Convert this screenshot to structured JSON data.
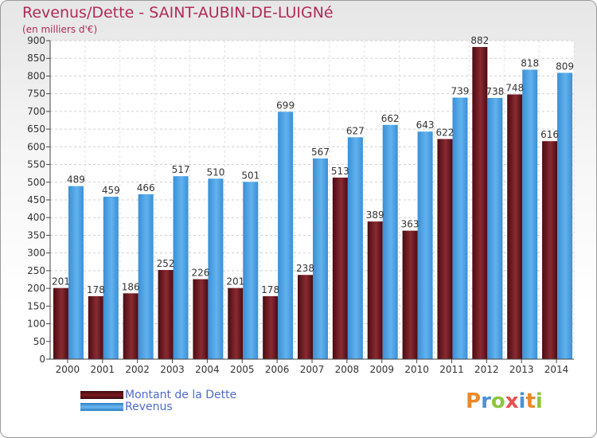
{
  "chart_data": {
    "type": "bar",
    "title": "Revenus/Dette - SAINT-AUBIN-DE-LUIGNé",
    "subtitle": "(en milliers d'€)",
    "categories": [
      "2000",
      "2001",
      "2002",
      "2003",
      "2004",
      "2005",
      "2006",
      "2007",
      "2008",
      "2009",
      "2010",
      "2011",
      "2012",
      "2013",
      "2014"
    ],
    "series": [
      {
        "name": "Montant de la Dette",
        "color": "#7a1a20",
        "values": [
          201,
          178,
          186,
          252,
          226,
          201,
          178,
          238,
          513,
          389,
          363,
          622,
          882,
          748,
          616
        ]
      },
      {
        "name": "Revenus",
        "color": "#4ea3e3",
        "values": [
          489,
          459,
          466,
          517,
          510,
          501,
          699,
          567,
          627,
          662,
          643,
          739,
          738,
          818,
          809
        ]
      }
    ],
    "yticks": [
      0,
      50,
      100,
      150,
      200,
      250,
      300,
      350,
      400,
      450,
      500,
      550,
      600,
      650,
      700,
      750,
      800,
      850,
      900
    ],
    "ylim": [
      0,
      900
    ],
    "grid": true,
    "legend_position": "bottom-left"
  },
  "brand": {
    "letters": [
      "P",
      "r",
      "o",
      "x",
      "i",
      "t",
      "i"
    ],
    "colors": [
      "#e98a2a",
      "#4a90d9",
      "#8cc63f",
      "#e94e4e",
      "#4a90d9",
      "#e98a2a",
      "#8cc63f"
    ]
  }
}
